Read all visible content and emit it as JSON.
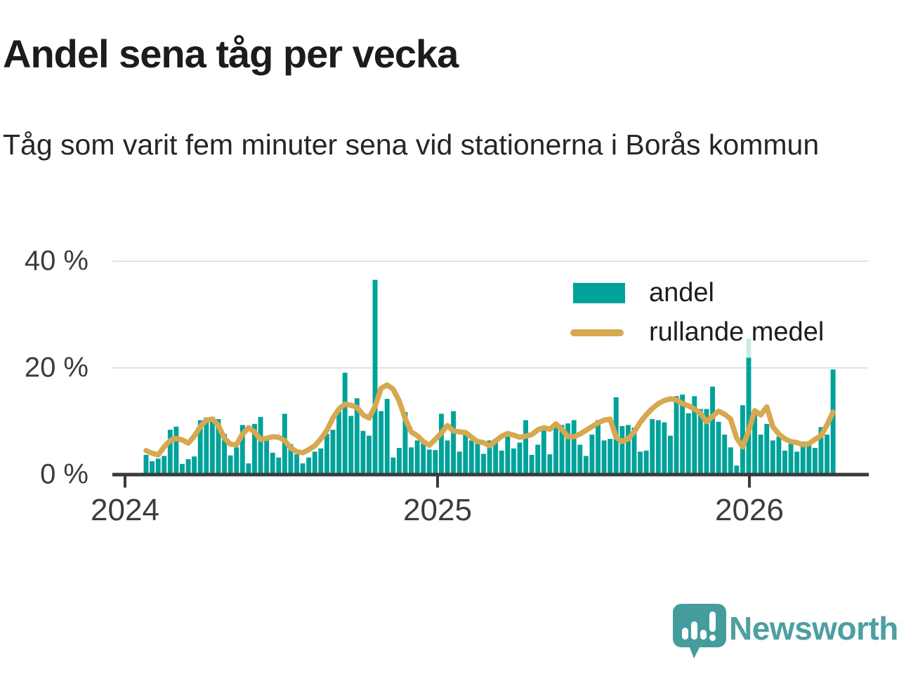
{
  "header": {
    "title": "Andel sena tåg per vecka",
    "subtitle": "Tåg som varit fem minuter sena vid stationerna i Borås kommun"
  },
  "legend": {
    "items": [
      {
        "label": "andel",
        "type": "fill",
        "color": "#00a29a"
      },
      {
        "label": "rullande medel",
        "type": "line",
        "color": "#d7a84f"
      }
    ]
  },
  "branding": {
    "name": "Newsworthy"
  },
  "chart_data": {
    "type": "bar",
    "title": "Andel sena tåg per vecka",
    "subtitle": "Tåg som varit fem minuter sena vid stationerna i Borås kommun",
    "unit": "%",
    "x_tick_labels": [
      "2024",
      "2025",
      "2026"
    ],
    "y_ticks": [
      {
        "value": 0,
        "label": "0 %"
      },
      {
        "value": 20,
        "label": "20 %"
      },
      {
        "value": 40,
        "label": "40 %"
      }
    ],
    "ylim": [
      0,
      42
    ],
    "grid": "horizontal",
    "legend_position": "inside-top-right",
    "colors": {
      "bar": "#00a29a",
      "bar_pale": "#cde9e6",
      "line": "#d7a84f",
      "grid": "#e2e2e2",
      "axis": "#3a3a3a"
    },
    "series": [
      {
        "name": "andel",
        "type": "bar",
        "color": "#00a29a",
        "values": [
          3.7,
          2.5,
          3.0,
          3.5,
          8.4,
          9.0,
          2.0,
          2.9,
          3.4,
          10.2,
          10.7,
          10.8,
          10.4,
          7.6,
          3.6,
          5.1,
          9.3,
          2.1,
          9.5,
          10.8,
          6.6,
          4.1,
          3.2,
          11.4,
          5.7,
          3.8,
          2.1,
          3.2,
          4.3,
          4.9,
          7.6,
          8.4,
          11.8,
          19.1,
          11.0,
          14.3,
          8.2,
          7.3,
          36.5,
          11.9,
          14.2,
          3.2,
          5.0,
          11.7,
          5.1,
          6.4,
          5.8,
          4.7,
          4.6,
          11.4,
          6.4,
          11.9,
          4.3,
          7.5,
          6.4,
          5.8,
          3.9,
          6.4,
          6.7,
          4.5,
          7.1,
          4.9,
          6.0,
          10.2,
          3.7,
          5.6,
          9.1,
          3.8,
          8.8,
          9.3,
          9.6,
          10.2,
          5.6,
          3.5,
          7.5,
          10.2,
          6.4,
          6.7,
          14.5,
          9.1,
          9.3,
          8.8,
          4.3,
          4.5,
          10.4,
          10.2,
          9.8,
          7.3,
          14.7,
          15.0,
          11.5,
          14.7,
          12.3,
          12.3,
          16.5,
          9.9,
          7.5,
          5.1,
          1.7,
          13.0,
          25.5,
          11.7,
          7.5,
          9.5,
          6.4,
          7.1,
          4.5,
          5.8,
          4.3,
          6.2,
          6.2,
          5.0,
          8.9,
          7.5,
          19.7
        ]
      },
      {
        "name": "rullande medel",
        "type": "line",
        "color": "#d7a84f",
        "values": [
          4.5,
          4.0,
          3.7,
          5.2,
          6.4,
          6.8,
          6.5,
          5.9,
          7.2,
          9.0,
          10.2,
          10.4,
          9.2,
          6.8,
          5.7,
          5.6,
          7.6,
          8.8,
          8.0,
          6.6,
          6.8,
          7.1,
          7.0,
          6.4,
          5.0,
          4.3,
          4.1,
          4.7,
          5.4,
          6.7,
          8.3,
          10.6,
          12.3,
          13.2,
          13.0,
          12.6,
          11.2,
          10.6,
          12.8,
          16.2,
          16.8,
          16.0,
          13.8,
          10.5,
          8.0,
          7.3,
          6.2,
          5.5,
          6.6,
          7.8,
          9.2,
          8.2,
          8.0,
          7.9,
          7.0,
          6.2,
          6.0,
          5.4,
          6.3,
          7.2,
          7.7,
          7.4,
          7.0,
          7.2,
          7.5,
          8.4,
          8.8,
          8.5,
          9.5,
          8.5,
          7.1,
          7.1,
          7.6,
          8.3,
          9.0,
          9.7,
          10.2,
          10.4,
          7.0,
          6.2,
          6.7,
          8.0,
          9.8,
          11.2,
          12.4,
          13.3,
          13.9,
          14.2,
          14.0,
          13.3,
          12.9,
          12.3,
          11.5,
          9.9,
          10.9,
          11.9,
          11.3,
          10.4,
          6.9,
          5.2,
          8.2,
          12.0,
          11.2,
          12.7,
          9.0,
          7.6,
          6.7,
          6.2,
          6.0,
          5.6,
          5.8,
          6.6,
          7.3,
          9.3,
          11.7
        ]
      }
    ],
    "highlight_bar": {
      "index": 100,
      "solid_value": 21.9,
      "total_value": 25.5,
      "pale_color": "#cde9e6"
    }
  }
}
